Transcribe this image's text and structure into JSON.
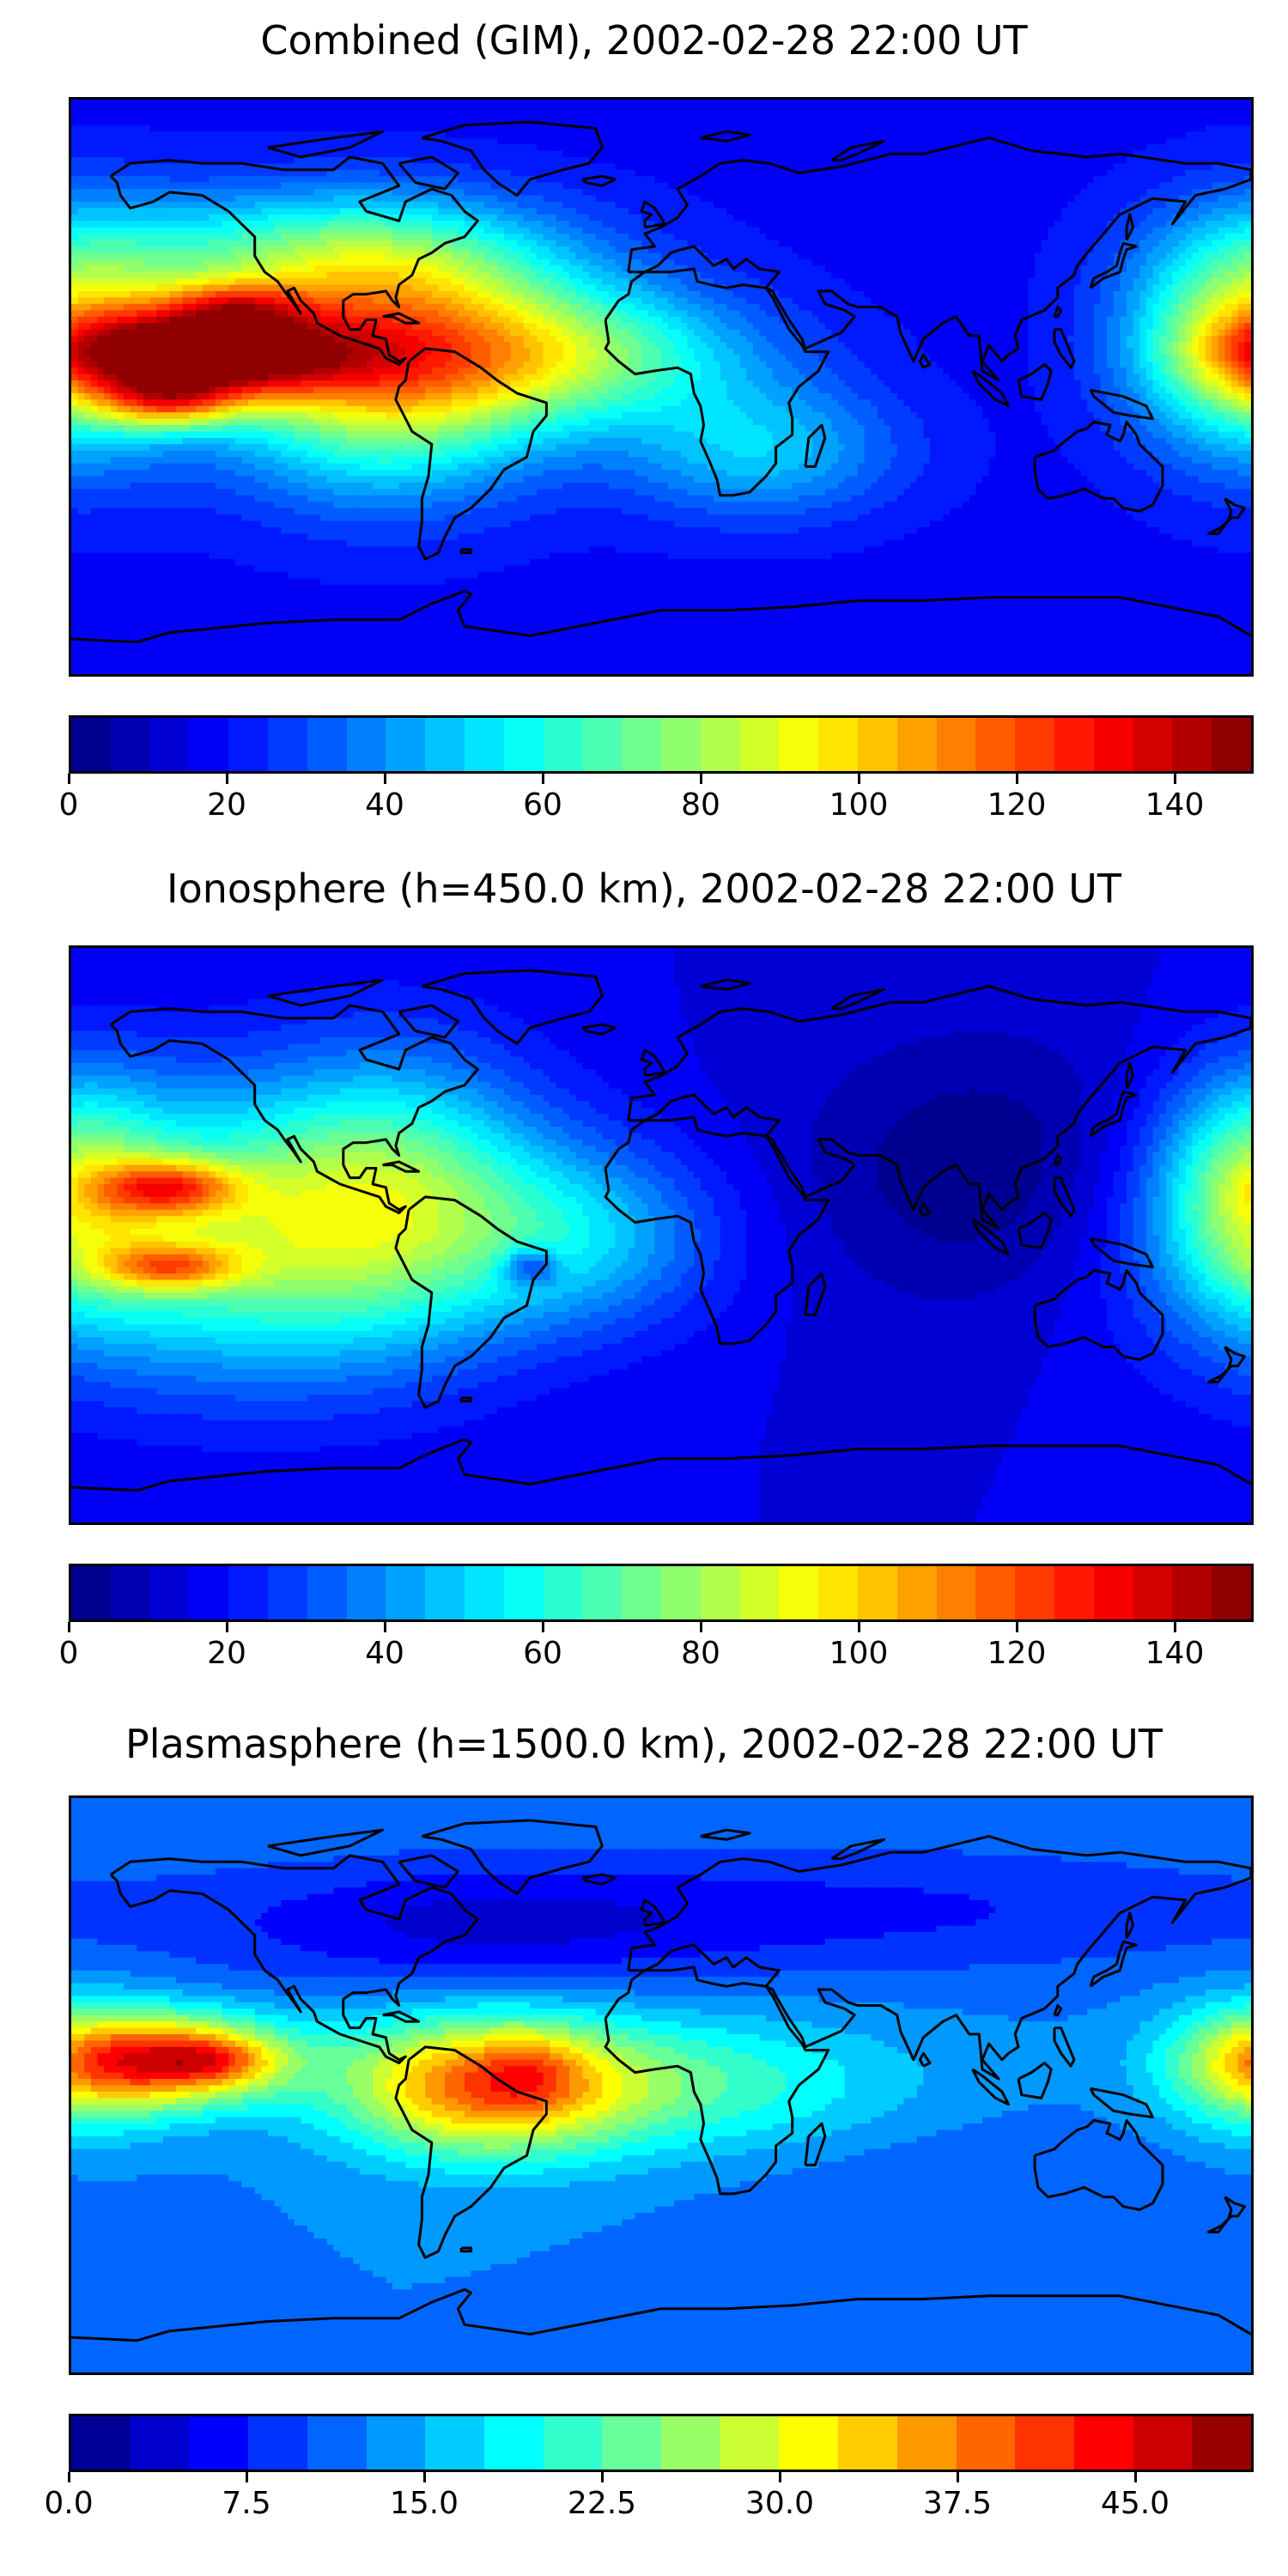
{
  "panels": [
    {
      "title": "Combined (GIM), 2002-02-28 22:00 UT",
      "colorbar": {
        "min": 0,
        "max": 150,
        "levels": 30,
        "ticks": [
          "0",
          "20",
          "40",
          "60",
          "80",
          "100",
          "120",
          "140"
        ]
      },
      "field": {
        "base": 0.12,
        "blobs": [
          {
            "lon": -140,
            "lat": 10,
            "sx": 30,
            "sy": 10,
            "amp": 0.75
          },
          {
            "lon": -130,
            "lat": 25,
            "sx": 15,
            "sy": 6,
            "amp": 0.25
          },
          {
            "lon": -150,
            "lat": -5,
            "sx": 15,
            "sy": 6,
            "amp": 0.3
          },
          {
            "lon": -85,
            "lat": 5,
            "sx": 35,
            "sy": 25,
            "amp": 0.5
          },
          {
            "lon": -30,
            "lat": 10,
            "sx": 40,
            "sy": 15,
            "amp": 0.35
          },
          {
            "lon": 180,
            "lat": 15,
            "sx": 25,
            "sy": 25,
            "amp": 0.45
          },
          {
            "lon": -100,
            "lat": 40,
            "sx": 50,
            "sy": 15,
            "amp": 0.3
          },
          {
            "lon": 30,
            "lat": -20,
            "sx": 30,
            "sy": 15,
            "amp": 0.2
          }
        ]
      }
    },
    {
      "title": "Ionosphere  (h=450.0 km), 2002-02-28 22:00 UT",
      "colorbar": {
        "min": 0,
        "max": 150,
        "levels": 30,
        "ticks": [
          "0",
          "20",
          "40",
          "60",
          "80",
          "100",
          "120",
          "140"
        ]
      },
      "field": {
        "base": 0.1,
        "blobs": [
          {
            "lon": -150,
            "lat": 15,
            "sx": 15,
            "sy": 6,
            "amp": 0.35
          },
          {
            "lon": -150,
            "lat": -10,
            "sx": 15,
            "sy": 5,
            "amp": 0.3
          },
          {
            "lon": -130,
            "lat": 0,
            "sx": 50,
            "sy": 30,
            "amp": 0.4
          },
          {
            "lon": -80,
            "lat": 15,
            "sx": 30,
            "sy": 30,
            "amp": 0.25
          },
          {
            "lon": -25,
            "lat": 0,
            "sx": 30,
            "sy": 20,
            "amp": 0.2
          },
          {
            "lon": 180,
            "lat": 15,
            "sx": 20,
            "sy": 25,
            "amp": 0.3
          },
          {
            "lon": -40,
            "lat": -10,
            "sx": 6,
            "sy": 4,
            "amp": -0.2
          },
          {
            "lon": 100,
            "lat": 20,
            "sx": 40,
            "sy": 30,
            "amp": -0.1
          }
        ]
      }
    },
    {
      "title": "Plasmasphere (h=1500.0 km), 2002-02-28 22:00 UT",
      "colorbar": {
        "min": 0,
        "max": 50,
        "levels": 20,
        "ticks": [
          "0.0",
          "7.5",
          "15.0",
          "22.5",
          "30.0",
          "37.5",
          "45.0"
        ]
      },
      "field": {
        "base": 0.25,
        "blobs": [
          {
            "lon": -150,
            "lat": 8,
            "sx": 25,
            "sy": 10,
            "amp": 0.55
          },
          {
            "lon": -135,
            "lat": 8,
            "sx": 12,
            "sy": 5,
            "amp": 0.15
          },
          {
            "lon": -55,
            "lat": 0,
            "sx": 30,
            "sy": 15,
            "amp": 0.45
          },
          {
            "lon": -40,
            "lat": 5,
            "sx": 10,
            "sy": 8,
            "amp": 0.1
          },
          {
            "lon": 0,
            "lat": 0,
            "sx": 50,
            "sy": 15,
            "amp": 0.2
          },
          {
            "lon": 180,
            "lat": 5,
            "sx": 20,
            "sy": 15,
            "amp": 0.25
          },
          {
            "lon": -60,
            "lat": 50,
            "sx": 60,
            "sy": 15,
            "amp": -0.15
          },
          {
            "lon": 80,
            "lat": 55,
            "sx": 80,
            "sy": 15,
            "amp": -0.1
          },
          {
            "lon": 100,
            "lat": -30,
            "sx": 60,
            "sy": 15,
            "amp": -0.05
          }
        ]
      }
    }
  ],
  "colormap": [
    "#00007f",
    "#0000ff",
    "#007fff",
    "#00ffff",
    "#7fff7f",
    "#ffff00",
    "#ff7f00",
    "#ff0000",
    "#7f0000"
  ],
  "coastline_color": "#000000"
}
